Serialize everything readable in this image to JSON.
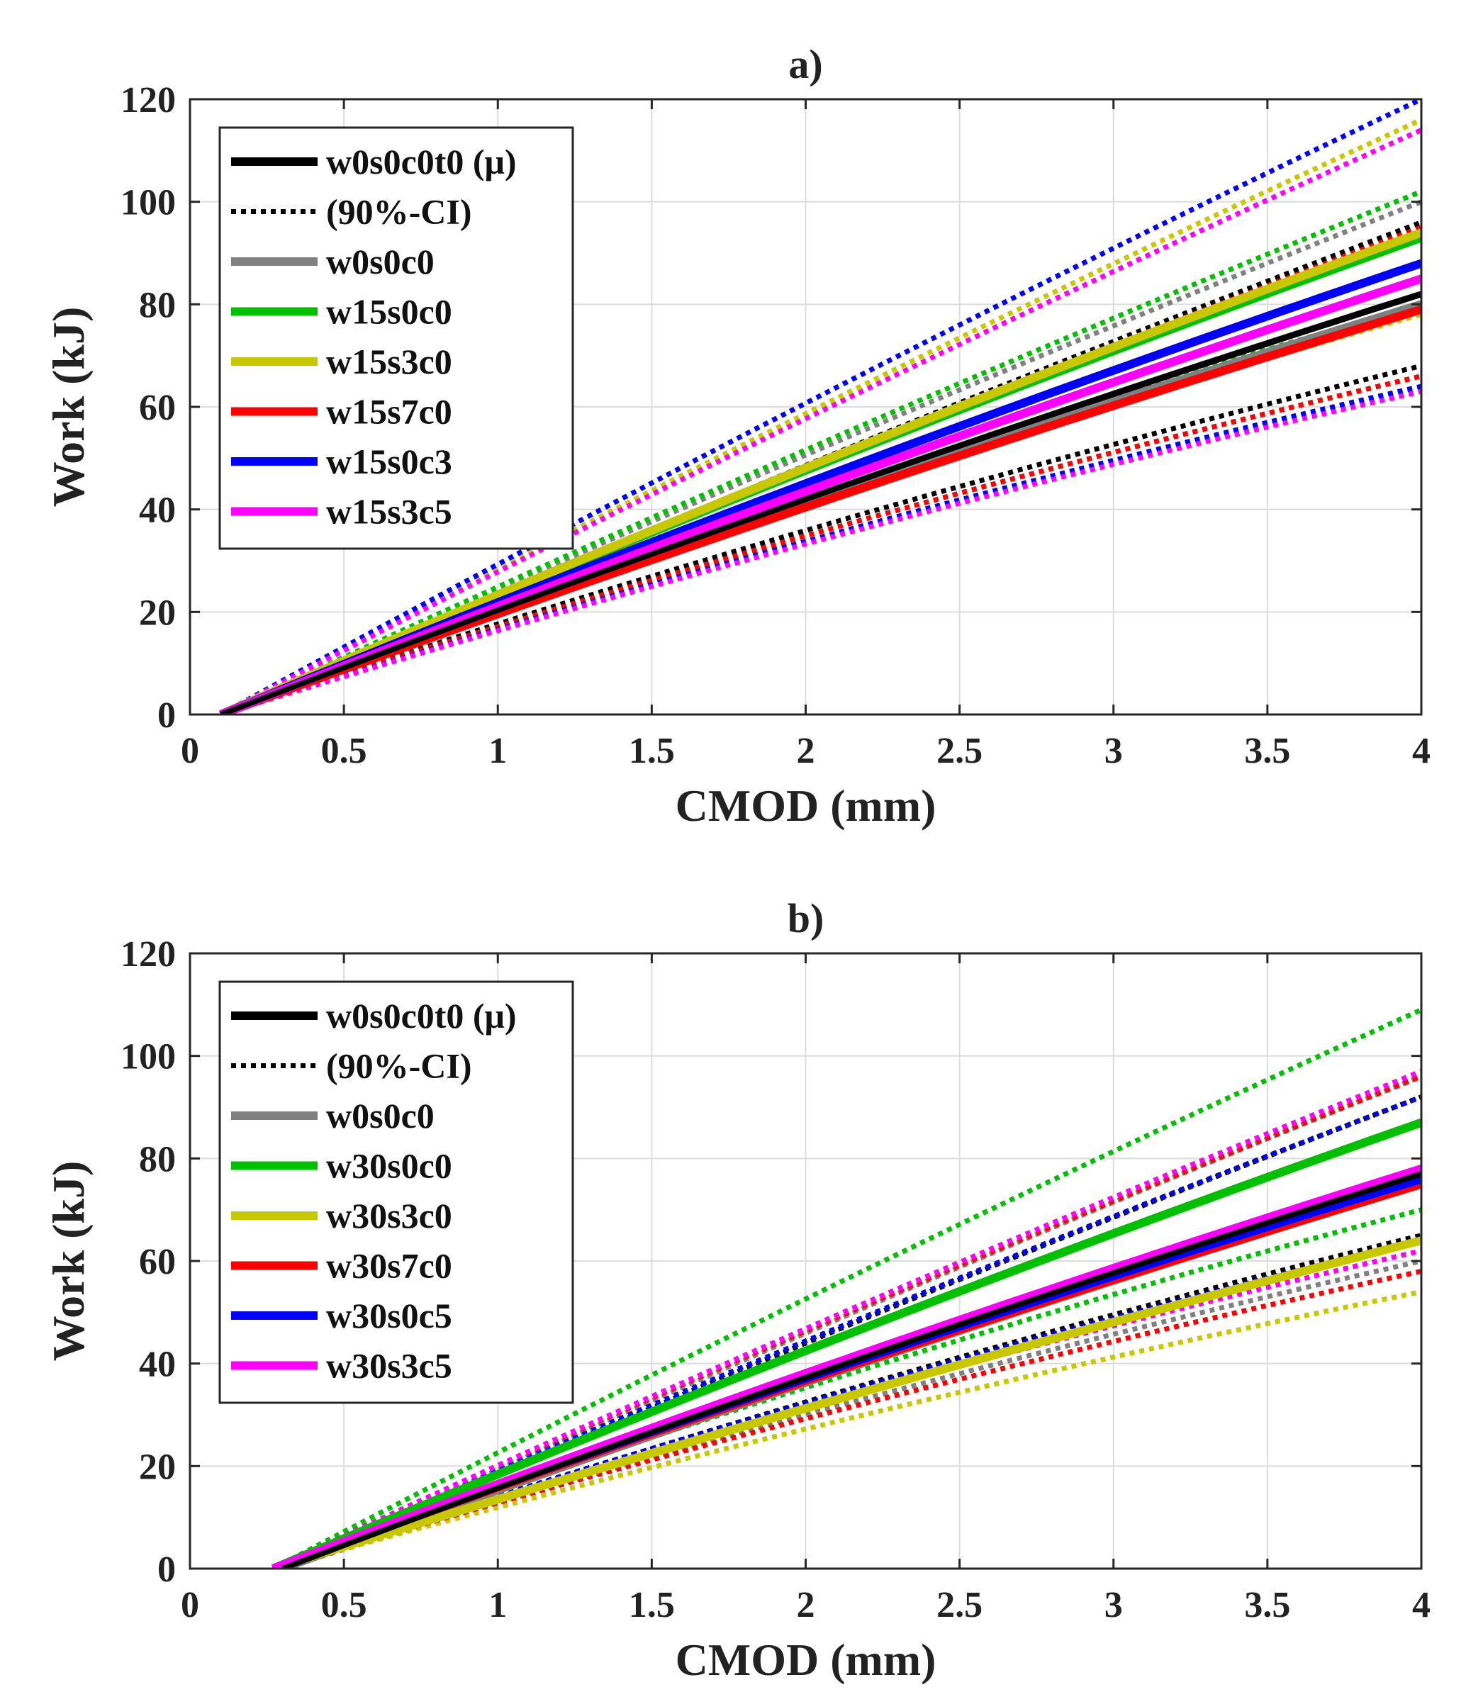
{
  "chart_data": [
    {
      "type": "line",
      "title": "a)",
      "xlabel": "CMOD (mm)",
      "ylabel": "Work (kJ)",
      "xlim": [
        0,
        4
      ],
      "ylim": [
        0,
        120
      ],
      "xticks": [
        0,
        0.5,
        1,
        1.5,
        2,
        2.5,
        3,
        3.5,
        4
      ],
      "xtick_labels": [
        "0",
        "0.5",
        "1",
        "1.5",
        "2",
        "2.5",
        "3",
        "3.5",
        "4"
      ],
      "yticks": [
        0,
        20,
        40,
        60,
        80,
        100,
        120
      ],
      "ytick_labels": [
        "0",
        "20",
        "40",
        "60",
        "80",
        "100",
        "120"
      ],
      "grid": true,
      "legend_position": "top-left",
      "legend": [
        {
          "label": "w0s0c0t0 (μ)",
          "color": "#000000",
          "style": "solid"
        },
        {
          "label": "(90%-CI)",
          "color": "#000000",
          "style": "dotted"
        },
        {
          "label": "w0s0c0",
          "color": "#808080",
          "style": "solid"
        },
        {
          "label": "w15s0c0",
          "color": "#00c000",
          "style": "solid"
        },
        {
          "label": "w15s3c0",
          "color": "#c8c800",
          "style": "solid"
        },
        {
          "label": "w15s7c0",
          "color": "#ff0000",
          "style": "solid"
        },
        {
          "label": "w15s0c3",
          "color": "#0000ff",
          "style": "solid"
        },
        {
          "label": "w15s3c5",
          "color": "#ff00ff",
          "style": "solid"
        }
      ],
      "series": [
        {
          "name": "w0s0c0t0 (μ)",
          "color": "#000000",
          "x0": 0.1,
          "mean": 82,
          "ci_lower": 68,
          "ci_upper": 96
        },
        {
          "name": "w0s0c0",
          "color": "#808080",
          "x0": 0.1,
          "mean": 80,
          "ci_lower": 66,
          "ci_upper": 100
        },
        {
          "name": "w15s0c0",
          "color": "#00c000",
          "x0": 0.1,
          "mean": 93,
          "ci_lower": 80,
          "ci_upper": 102
        },
        {
          "name": "w15s3c0",
          "color": "#c8c800",
          "x0": 0.1,
          "mean": 94,
          "ci_lower": 78,
          "ci_upper": 116
        },
        {
          "name": "w15s7c0",
          "color": "#ff0000",
          "x0": 0.1,
          "mean": 79,
          "ci_lower": 66,
          "ci_upper": 95
        },
        {
          "name": "w15s0c3",
          "color": "#0000ff",
          "x0": 0.1,
          "mean": 88,
          "ci_lower": 64,
          "ci_upper": 120
        },
        {
          "name": "w15s3c5",
          "color": "#ff00ff",
          "x0": 0.1,
          "mean": 85,
          "ci_lower": 63,
          "ci_upper": 114
        }
      ]
    },
    {
      "type": "line",
      "title": "b)",
      "xlabel": "CMOD (mm)",
      "ylabel": "Work (kJ)",
      "xlim": [
        0,
        4
      ],
      "ylim": [
        0,
        120
      ],
      "xticks": [
        0,
        0.5,
        1,
        1.5,
        2,
        2.5,
        3,
        3.5,
        4
      ],
      "xtick_labels": [
        "0",
        "0.5",
        "1",
        "1.5",
        "2",
        "2.5",
        "3",
        "3.5",
        "4"
      ],
      "yticks": [
        0,
        20,
        40,
        60,
        80,
        100,
        120
      ],
      "ytick_labels": [
        "0",
        "20",
        "40",
        "60",
        "80",
        "100",
        "120"
      ],
      "grid": true,
      "legend_position": "top-left",
      "legend": [
        {
          "label": "w0s0c0t0 (μ)",
          "color": "#000000",
          "style": "solid"
        },
        {
          "label": "(90%-CI)",
          "color": "#000000",
          "style": "dotted"
        },
        {
          "label": "w0s0c0",
          "color": "#808080",
          "style": "solid"
        },
        {
          "label": "w30s0c0",
          "color": "#00c000",
          "style": "solid"
        },
        {
          "label": "w30s3c0",
          "color": "#c8c800",
          "style": "solid"
        },
        {
          "label": "w30s7c0",
          "color": "#ff0000",
          "style": "solid"
        },
        {
          "label": "w30s0c5",
          "color": "#0000ff",
          "style": "solid"
        },
        {
          "label": "w30s3c5",
          "color": "#ff00ff",
          "style": "solid"
        }
      ],
      "series": [
        {
          "name": "w0s0c0t0 (μ)",
          "color": "#000000",
          "x0": 0.3,
          "mean": 77,
          "ci_lower": 65,
          "ci_upper": 92
        },
        {
          "name": "w0s0c0",
          "color": "#808080",
          "x0": 0.3,
          "mean": 75,
          "ci_lower": 60,
          "ci_upper": 96
        },
        {
          "name": "w30s0c0",
          "color": "#00c000",
          "x0": 0.27,
          "mean": 87,
          "ci_lower": 70,
          "ci_upper": 109
        },
        {
          "name": "w30s3c0",
          "color": "#c8c800",
          "x0": 0.27,
          "mean": 64,
          "ci_lower": 54,
          "ci_upper": 92
        },
        {
          "name": "w30s7c0",
          "color": "#ff0000",
          "x0": 0.27,
          "mean": 75,
          "ci_lower": 58,
          "ci_upper": 96
        },
        {
          "name": "w30s0c5",
          "color": "#0000ff",
          "x0": 0.27,
          "mean": 76,
          "ci_lower": 64,
          "ci_upper": 92
        },
        {
          "name": "w30s3c5",
          "color": "#ff00ff",
          "x0": 0.27,
          "mean": 78,
          "ci_lower": 62,
          "ci_upper": 97
        }
      ]
    }
  ]
}
